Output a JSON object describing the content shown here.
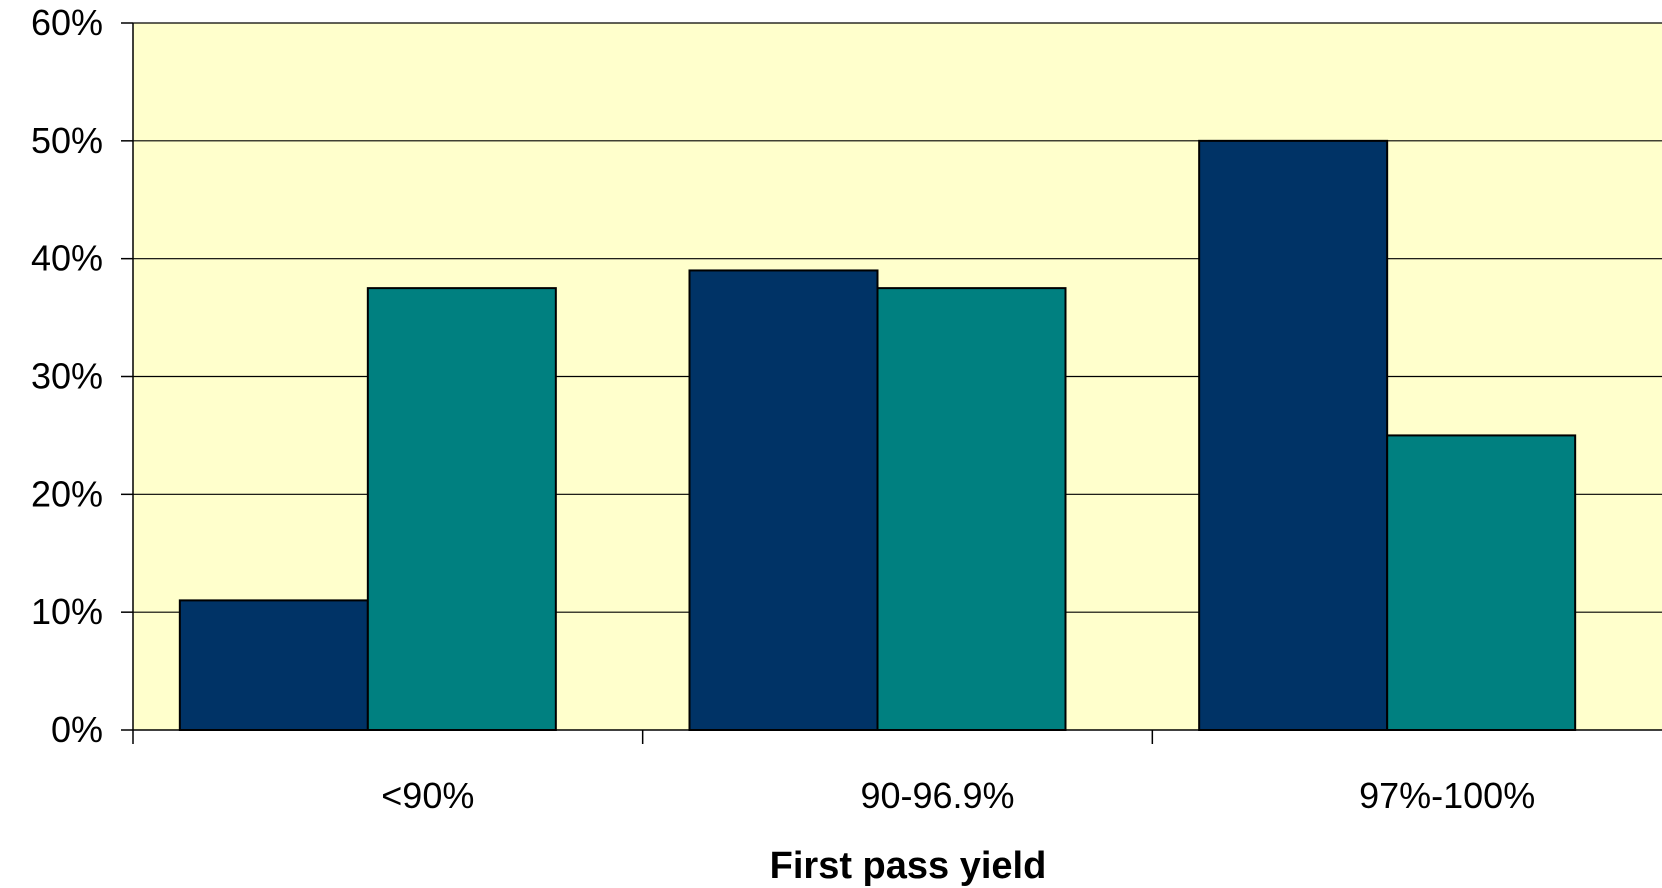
{
  "chart_data": {
    "type": "bar",
    "title": "",
    "xlabel": "First pass yield",
    "ylabel": "",
    "categories": [
      "<90%",
      "90-96.9%",
      "97%-100%"
    ],
    "series": [
      {
        "color": "#003366",
        "values": [
          11,
          39,
          50
        ]
      },
      {
        "color": "#008080",
        "values": [
          37.5,
          37.5,
          25
        ]
      }
    ],
    "ylim": [
      0,
      60
    ],
    "yticks": [
      0,
      10,
      20,
      30,
      40,
      50,
      60
    ],
    "ytick_labels": [
      "0%",
      "10%",
      "20%",
      "30%",
      "40%",
      "50%",
      "60%"
    ],
    "grid": true,
    "legend": "none",
    "plot_background": "#FFFFCC"
  }
}
